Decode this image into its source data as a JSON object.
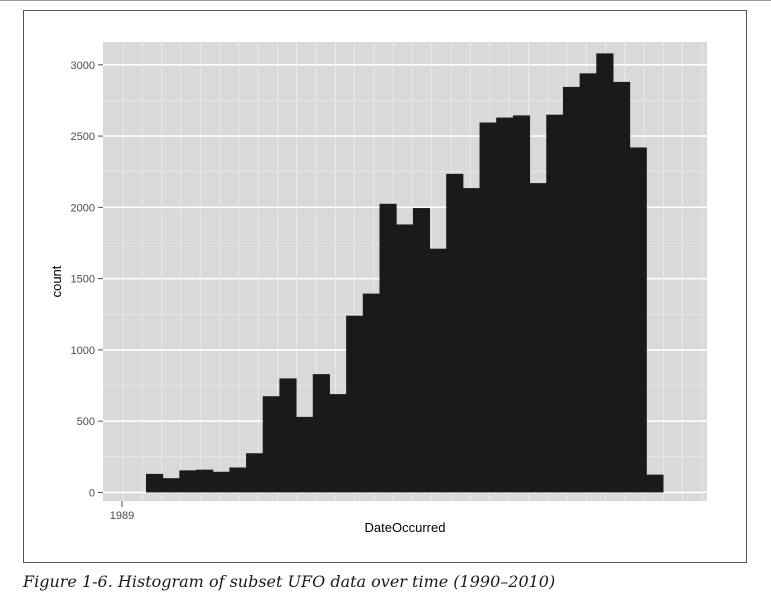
{
  "figure": {
    "caption": "Figure 1-6. Histogram of subset UFO data over time (1990–2010)"
  },
  "chart_data": {
    "type": "bar",
    "title": "",
    "xlabel": "DateOccurred",
    "ylabel": "count",
    "x_tick_labels": [
      "1989"
    ],
    "y_ticks": [
      0,
      500,
      1000,
      1500,
      2000,
      2500,
      3000
    ],
    "ylim": [
      -60,
      3160
    ],
    "grid": true,
    "legend": "none",
    "bar_color": "#1a1a1a",
    "panel_color": "#d9d9d9",
    "grid_color": "#ffffff",
    "series": [
      {
        "values": [
          130,
          100,
          155,
          160,
          145,
          175,
          275,
          675,
          800,
          530,
          830,
          690,
          1240,
          1395,
          2025,
          1880,
          1995,
          1710,
          2235,
          2135,
          2595,
          2630,
          2645,
          2170,
          2650,
          2845,
          2940,
          3080,
          2880,
          2420,
          125
        ]
      }
    ]
  }
}
